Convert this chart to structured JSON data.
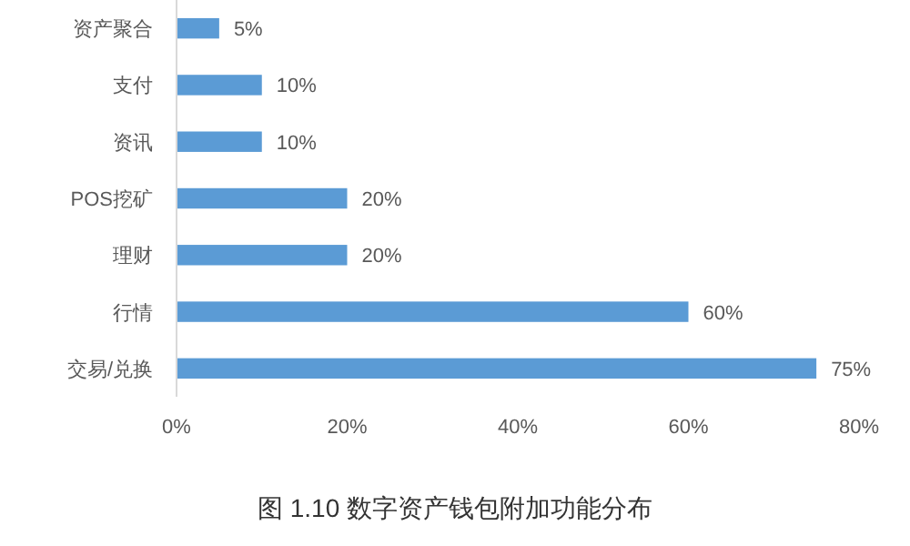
{
  "chart_data": {
    "type": "bar",
    "orientation": "horizontal",
    "title": "图 1.10 数字资产钱包附加功能分布",
    "categories": [
      "资产聚合",
      "支付",
      "资讯",
      "POS挖矿",
      "理财",
      "行情",
      "交易/兑换"
    ],
    "values": [
      5,
      10,
      10,
      20,
      20,
      60,
      75
    ],
    "value_labels": [
      "5%",
      "10%",
      "10%",
      "20%",
      "20%",
      "60%",
      "75%"
    ],
    "color": "#5b9bd5",
    "xlim": [
      0,
      80
    ],
    "xticks": [
      {
        "value": 0,
        "label": "0%"
      },
      {
        "value": 20,
        "label": "20%"
      },
      {
        "value": 40,
        "label": "40%"
      },
      {
        "value": 60,
        "label": "60%"
      },
      {
        "value": 80,
        "label": "80%"
      }
    ],
    "grid": false
  }
}
